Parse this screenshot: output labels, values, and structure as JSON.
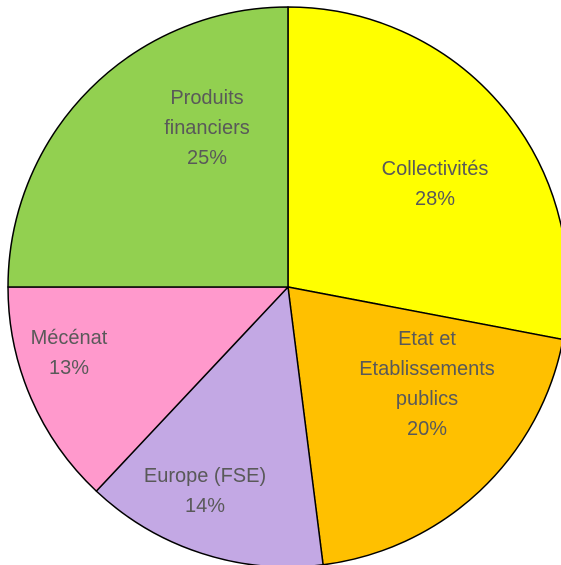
{
  "chart_data": {
    "type": "pie",
    "title": "",
    "start": "top",
    "direction": "clockwise",
    "slices": [
      {
        "label_lines": [
          "Collectivités"
        ],
        "percent_label": "28%",
        "value": 28,
        "color": "#FFFF00"
      },
      {
        "label_lines": [
          "Etat et",
          "Etablissements",
          "publics"
        ],
        "percent_label": "20%",
        "value": 20,
        "color": "#FFC000"
      },
      {
        "label_lines": [
          "Europe (FSE)"
        ],
        "percent_label": "14%",
        "value": 14,
        "color": "#C3A8E4"
      },
      {
        "label_lines": [
          "Mécénat"
        ],
        "percent_label": "13%",
        "value": 13,
        "color": "#FF99CC"
      },
      {
        "label_lines": [
          "Produits",
          "financiers"
        ],
        "percent_label": "25%",
        "value": 25,
        "color": "#92D050"
      }
    ],
    "edge_color": "#000000"
  }
}
